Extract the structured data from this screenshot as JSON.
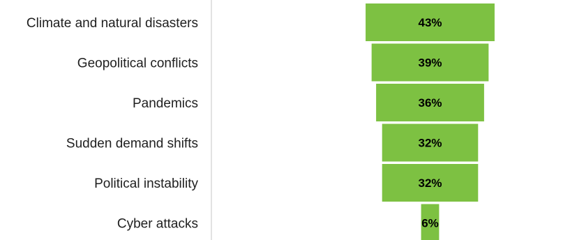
{
  "chart_data": {
    "type": "bar",
    "subtype": "funnel",
    "categories": [
      "Climate and natural disasters",
      "Geopolitical conflicts",
      "Pandemics",
      "Sudden demand shifts",
      "Political instability",
      "Cyber attacks"
    ],
    "values": [
      43,
      39,
      36,
      32,
      32,
      6
    ],
    "value_labels": [
      "43%",
      "39%",
      "36%",
      "32%",
      "32%",
      "6%"
    ],
    "title": "",
    "xlabel": "",
    "ylabel": "",
    "grid": false,
    "legend": "none",
    "colors": {
      "bar": "#7dc142",
      "bar_border": "#ffffff",
      "category_text": "#1f1f1f",
      "value_text": "#000000",
      "axis": "#d9d9d9"
    }
  }
}
